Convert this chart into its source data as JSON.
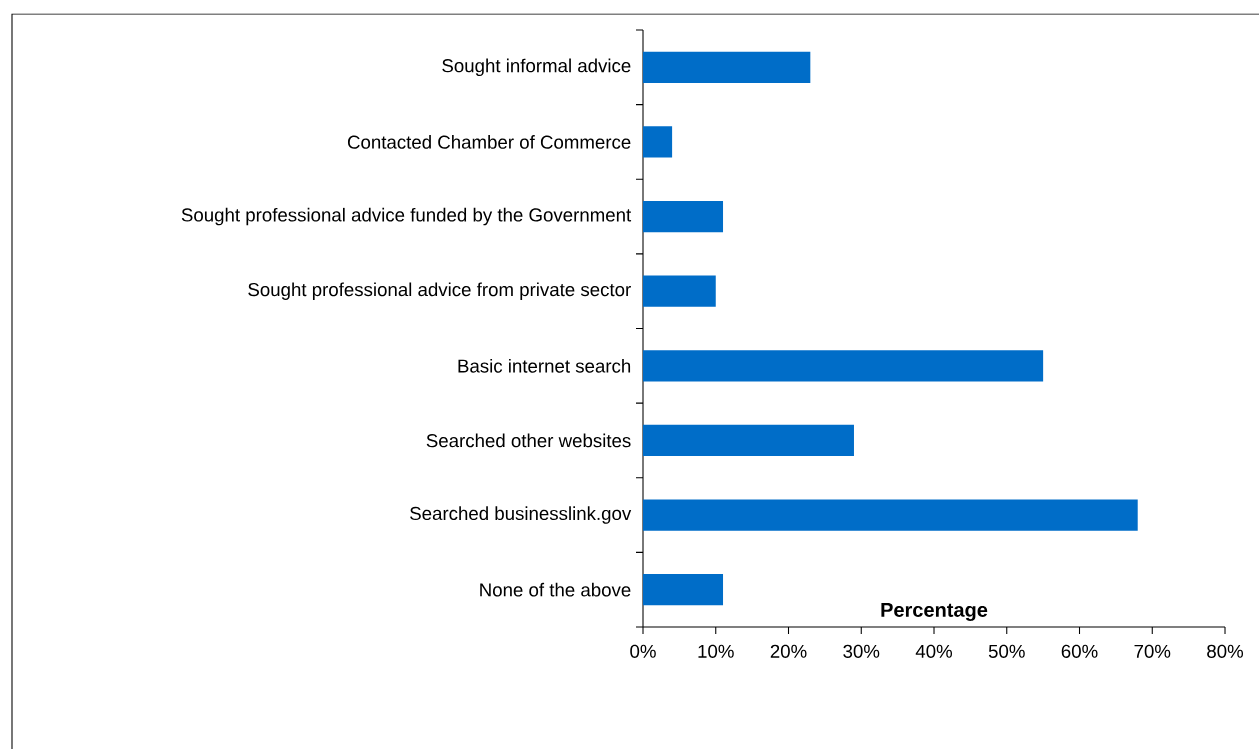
{
  "chart_data": {
    "type": "bar",
    "orientation": "horizontal",
    "xlabel": "Percentage",
    "categories": [
      "Sought informal advice",
      "Contacted Chamber of Commerce",
      "Sought professional advice funded by the Government",
      "Sought professional advice from private sector",
      "Basic internet search",
      "Searched other websites",
      "Searched businesslink.gov",
      "None of the above"
    ],
    "values": [
      23,
      4,
      11,
      10,
      55,
      29,
      68,
      11
    ],
    "color": "#006dc8",
    "xlim": [
      0,
      80
    ],
    "xticks": [
      {
        "value": 0,
        "label": "0%"
      },
      {
        "value": 10,
        "label": "10%"
      },
      {
        "value": 20,
        "label": "20%"
      },
      {
        "value": 30,
        "label": "30%"
      },
      {
        "value": 40,
        "label": "40%"
      },
      {
        "value": 50,
        "label": "50%"
      },
      {
        "value": 60,
        "label": "60%"
      },
      {
        "value": 70,
        "label": "70%"
      },
      {
        "value": 80,
        "label": "80%"
      }
    ],
    "marker": "none"
  }
}
